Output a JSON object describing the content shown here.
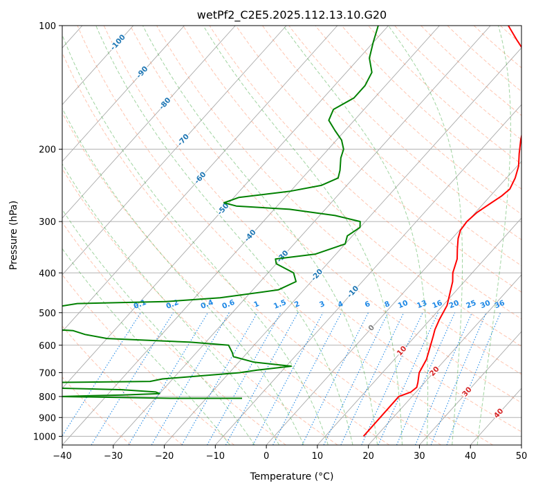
{
  "chart_data": {
    "type": "line",
    "chart_kind": "skew-T log-p diagram",
    "title": "wetPf2_C2E5.2025.112.13.10.G20",
    "xlabel": "Temperature (°C)",
    "ylabel": "Pressure (hPa)",
    "xlim": [
      -40,
      50
    ],
    "ylim_pressure": [
      1050,
      100
    ],
    "y_scale": "log",
    "grid": true,
    "x_ticks": [
      "−40",
      "−30",
      "−20",
      "−10",
      "0",
      "10",
      "20",
      "30",
      "40",
      "50"
    ],
    "y_ticks": [
      "1000",
      "900",
      "800",
      "700",
      "600",
      "500",
      "400",
      "300",
      "200",
      "100"
    ],
    "colors": {
      "temperature": "#ff0000",
      "dewpoint": "#008000",
      "isotherm_label": "#1f77b4",
      "mixing_ratio": "#1e88e5",
      "dry_adiabat": "#ff7f50",
      "moist_adiabat": "#2ca02c",
      "warm_isotherm_label": "#d62728"
    },
    "isotherm_labels_upper": [
      "-100",
      "-90",
      "-80",
      "-70",
      "-60",
      "-50",
      "-40",
      "-30",
      "-20",
      "-10"
    ],
    "isotherm_labels_lower": [
      "0",
      "10",
      "20",
      "30",
      "40"
    ],
    "mixing_ratio_labels": [
      "0.1",
      "0.2",
      "0.4",
      "0.6",
      "1",
      "1.5",
      "2",
      "3",
      "4",
      "6",
      "8",
      "10",
      "13",
      "16",
      "20",
      "25",
      "30",
      "36"
    ],
    "series": [
      {
        "key": "temperature",
        "points": [
          [
            1000,
            17.5
          ],
          [
            800,
            17.4
          ],
          [
            780,
            19
          ],
          [
            760,
            19.3
          ],
          [
            740,
            18.7
          ],
          [
            700,
            17.2
          ],
          [
            650,
            16.3
          ],
          [
            600,
            14.6
          ],
          [
            570,
            13.5
          ],
          [
            550,
            12.7
          ],
          [
            520,
            11.8
          ],
          [
            480,
            10.8
          ],
          [
            450,
            9.3
          ],
          [
            420,
            7.7
          ],
          [
            400,
            6.2
          ],
          [
            370,
            4.6
          ],
          [
            350,
            2.9
          ],
          [
            330,
            1.2
          ],
          [
            315,
            0.2
          ],
          [
            300,
            -0.1
          ],
          [
            285,
            0.3
          ],
          [
            270,
            1.4
          ],
          [
            260,
            2.2
          ],
          [
            250,
            2.6
          ],
          [
            235,
            1.7
          ],
          [
            220,
            0.3
          ],
          [
            205,
            -1.8
          ],
          [
            190,
            -3.9
          ],
          [
            180,
            -5.2
          ],
          [
            170,
            -6.5
          ],
          [
            160,
            -8.1
          ],
          [
            150,
            -9.9
          ],
          [
            140,
            -11.6
          ],
          [
            130,
            -13.6
          ],
          [
            122,
            -16.2
          ],
          [
            115,
            -19.1
          ],
          [
            108,
            -22.5
          ],
          [
            100,
            -26.5
          ]
        ]
      },
      {
        "key": "dewpoint",
        "points": [
          [
            808,
            -13
          ],
          [
            808,
            -27
          ],
          [
            800,
            -49
          ],
          [
            793,
            -37
          ],
          [
            787,
            -30
          ],
          [
            780,
            -31
          ],
          [
            770,
            -38
          ],
          [
            760,
            -57
          ],
          [
            740,
            -55
          ],
          [
            735,
            -34
          ],
          [
            725,
            -32
          ],
          [
            700,
            -18
          ],
          [
            690,
            -15
          ],
          [
            675,
            -9
          ],
          [
            660,
            -17
          ],
          [
            640,
            -22
          ],
          [
            625,
            -23
          ],
          [
            600,
            -25
          ],
          [
            590,
            -33
          ],
          [
            578,
            -50
          ],
          [
            565,
            -55
          ],
          [
            553,
            -58
          ],
          [
            542,
            -70
          ],
          [
            510,
            -75
          ],
          [
            475,
            -62
          ],
          [
            470,
            -45
          ],
          [
            460,
            -35
          ],
          [
            440,
            -25
          ],
          [
            420,
            -23
          ],
          [
            400,
            -25
          ],
          [
            380,
            -30
          ],
          [
            370,
            -31
          ],
          [
            360,
            -24
          ],
          [
            340,
            -20
          ],
          [
            325,
            -21
          ],
          [
            310,
            -20
          ],
          [
            300,
            -21
          ],
          [
            290,
            -27
          ],
          [
            280,
            -37
          ],
          [
            275,
            -48
          ],
          [
            270,
            -51
          ],
          [
            262,
            -49
          ],
          [
            257,
            -44
          ],
          [
            253,
            -40
          ],
          [
            245,
            -35
          ],
          [
            235,
            -33
          ],
          [
            225,
            -34
          ],
          [
            210,
            -36
          ],
          [
            200,
            -37
          ],
          [
            190,
            -39
          ],
          [
            180,
            -42
          ],
          [
            170,
            -45
          ],
          [
            160,
            -46
          ],
          [
            150,
            -44
          ],
          [
            140,
            -44
          ],
          [
            130,
            -45
          ],
          [
            120,
            -48
          ],
          [
            110,
            -50
          ],
          [
            100,
            -52
          ]
        ]
      }
    ]
  }
}
